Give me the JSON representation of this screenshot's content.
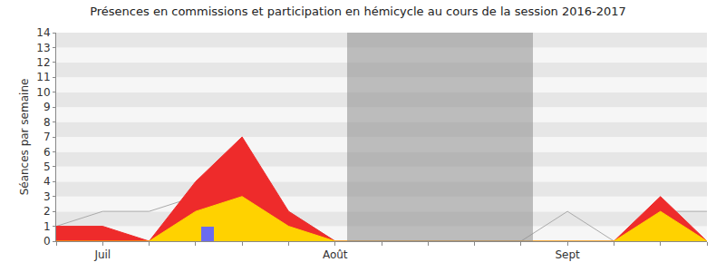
{
  "chart_data": {
    "type": "line",
    "title": "Présences en commissions et participation en hémicycle au cours de la session 2016-2017",
    "y_label": "Séances par semaine",
    "categories": [
      null,
      "Juil",
      null,
      null,
      null,
      null,
      "Août",
      null,
      null,
      null,
      null,
      "Sept",
      null,
      null,
      null
    ],
    "series": [
      {
        "type": "bar",
        "marker": "band",
        "color": "rgba(140,140,140,0.55)",
        "values": [
          null,
          null,
          null,
          null,
          null,
          null,
          null,
          14,
          14,
          14,
          14,
          null,
          null,
          null,
          null
        ]
      },
      {
        "type": "line",
        "color": "#aaaaaa",
        "values": [
          1,
          2,
          2,
          3,
          3,
          2,
          0,
          0,
          0,
          0,
          0,
          2,
          0,
          2,
          2
        ]
      },
      {
        "type": "area",
        "color": "#ee2b2b",
        "values": [
          1,
          1,
          0,
          4,
          7,
          2,
          0,
          0,
          0,
          0,
          0,
          0,
          0,
          3,
          0
        ]
      },
      {
        "type": "area",
        "color": "#ffd200",
        "values": [
          0,
          0,
          0,
          2,
          3,
          1,
          0,
          0,
          0,
          0,
          0,
          0,
          0,
          2,
          0
        ]
      },
      {
        "type": "bar",
        "marker": "bar",
        "color": "#6b6bf0",
        "values": [
          0,
          0,
          0,
          1,
          0,
          0,
          0,
          0,
          0,
          0,
          0,
          0,
          0,
          0,
          0
        ]
      }
    ],
    "ylim": [
      0,
      14
    ],
    "yticks": [
      0,
      1,
      2,
      3,
      4,
      5,
      6,
      7,
      8,
      9,
      10,
      11,
      12,
      13,
      14
    ],
    "grid": true
  }
}
